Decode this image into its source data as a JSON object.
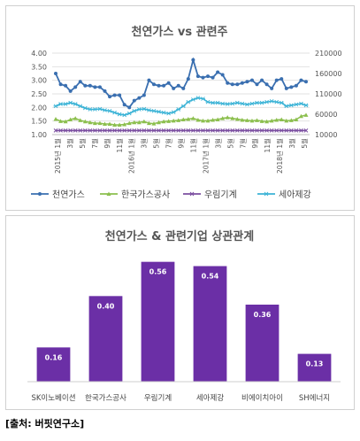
{
  "chart_data": [
    {
      "type": "line",
      "title": "천연가스 vs 관련주",
      "xlabel": "",
      "y_left_ticks": [
        "4.00",
        "3.50",
        "3.00",
        "2.50",
        "2.00",
        "1.50",
        "1.00"
      ],
      "y_right_ticks": [
        "210000",
        "160000",
        "110000",
        "60000",
        "10000"
      ],
      "ylim_left": [
        1.0,
        4.0
      ],
      "ylim_right": [
        10000,
        210000
      ],
      "x_tick_labels": [
        "2015년 1월",
        "3월",
        "5월",
        "7월",
        "9월",
        "11월",
        "2016년 1월",
        "3월",
        "5월",
        "7월",
        "9월",
        "11월",
        "2017년 1월",
        "3월",
        "5월",
        "7월",
        "9월",
        "11월",
        "2018년 1월",
        "3월",
        "5월"
      ],
      "legend_position": "bottom",
      "series": [
        {
          "name": "천연가스",
          "axis": "left",
          "color": "#3a6fb0",
          "marker": "circle",
          "values": [
            3.25,
            2.85,
            2.8,
            2.6,
            2.75,
            2.95,
            2.8,
            2.8,
            2.75,
            2.75,
            2.6,
            2.4,
            2.45,
            2.45,
            2.1,
            2.0,
            2.25,
            2.35,
            2.45,
            3.0,
            2.85,
            2.8,
            2.8,
            2.9,
            2.7,
            2.8,
            2.7,
            3.05,
            3.75,
            3.15,
            3.1,
            3.15,
            3.1,
            3.3,
            3.2,
            2.9,
            2.85,
            2.85,
            2.9,
            2.95,
            3.0,
            2.85,
            3.0,
            2.85,
            2.7,
            3.0,
            3.05,
            2.7,
            2.75,
            2.8,
            3.0,
            2.95
          ]
        },
        {
          "name": "한국가스공사",
          "axis": "right",
          "color": "#8cbf4e",
          "marker": "triangle",
          "values": [
            48000,
            43000,
            42000,
            47000,
            50000,
            45000,
            42000,
            40000,
            38000,
            38000,
            36000,
            36000,
            34000,
            34000,
            35000,
            38000,
            40000,
            40000,
            42000,
            38000,
            37000,
            40000,
            42000,
            43000,
            44000,
            45000,
            47000,
            48000,
            50000,
            46000,
            44000,
            44000,
            46000,
            47000,
            50000,
            52000,
            50000,
            48000,
            46000,
            45000,
            44000,
            45000,
            43000,
            42000,
            44000,
            46000,
            47000,
            44000,
            45000,
            47000,
            55000,
            58000
          ]
        },
        {
          "name": "우림기계",
          "axis": "right",
          "color": "#7b4fa0",
          "marker": "x",
          "values": [
            20000,
            20000,
            20000,
            20000,
            20000,
            20000,
            20000,
            20000,
            20000,
            20000,
            20000,
            20000,
            20000,
            20000,
            20000,
            20000,
            20000,
            20000,
            20000,
            20000,
            20000,
            20000,
            20000,
            20000,
            20000,
            20000,
            20000,
            20000,
            20000,
            20000,
            20000,
            20000,
            20000,
            20000,
            20000,
            20000,
            20000,
            20000,
            20000,
            20000,
            20000,
            20000,
            20000,
            20000,
            20000,
            20000,
            20000,
            20000,
            20000,
            20000,
            20000,
            20000
          ]
        },
        {
          "name": "세아제강",
          "axis": "right",
          "color": "#3bb3d6",
          "marker": "asterisk",
          "values": [
            80000,
            85000,
            85000,
            88000,
            85000,
            80000,
            75000,
            72000,
            72000,
            73000,
            70000,
            68000,
            64000,
            60000,
            58000,
            62000,
            68000,
            72000,
            73000,
            70000,
            68000,
            66000,
            64000,
            62000,
            65000,
            72000,
            80000,
            90000,
            96000,
            100000,
            98000,
            90000,
            88000,
            88000,
            86000,
            85000,
            86000,
            88000,
            86000,
            84000,
            86000,
            88000,
            88000,
            90000,
            92000,
            90000,
            88000,
            80000,
            82000,
            84000,
            86000,
            82000
          ]
        }
      ]
    },
    {
      "type": "bar",
      "title": "천연가스 & 관련기업 상관관계",
      "xlabel": "",
      "ylabel": "",
      "color": "#6b2fa6",
      "ylim": [
        0,
        0.6
      ],
      "categories": [
        "SK이노베이션",
        "한국가스공사",
        "우림기계",
        "세아제강",
        "비에이치아이",
        "SH에너지"
      ],
      "values": [
        0.16,
        0.4,
        0.56,
        0.54,
        0.36,
        0.13
      ],
      "value_labels": [
        "0.16",
        "0.40",
        "0.56",
        "0.54",
        "0.36",
        "0.13"
      ]
    }
  ],
  "source_note": "[출처: 버핏연구소]"
}
